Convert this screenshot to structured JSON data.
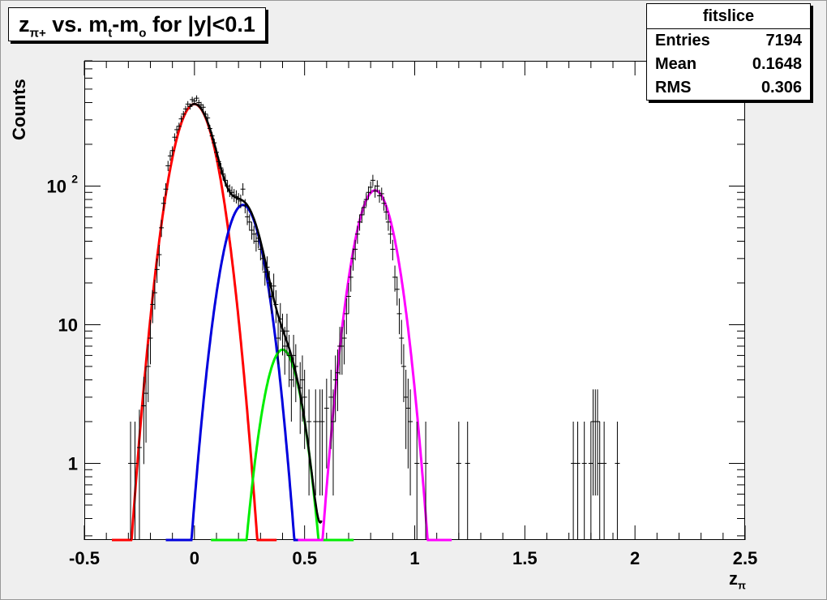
{
  "title": {
    "main": "z",
    "sub": "π+",
    "text1": " vs. m",
    "sub_t": "t",
    "text2": "-m",
    "sub_o": "o",
    "text3": " for |y|<0.1"
  },
  "stats": {
    "name": "fitslice",
    "rows": [
      {
        "label": "Entries",
        "value": "7194"
      },
      {
        "label": "Mean",
        "value": "0.1648"
      },
      {
        "label": "RMS",
        "value": "0.306"
      }
    ]
  },
  "colors": {
    "red": "#ff0000",
    "blue": "#0000dd",
    "green": "#00ee00",
    "magenta": "#ff00ff",
    "total": "#000000",
    "points": "#000000"
  },
  "chart_data": {
    "type": "scatter",
    "title": "zπ+ vs. mt-mo for |y|<0.1",
    "xlabel": "zπ",
    "ylabel": "Counts",
    "xlim": [
      -0.5,
      2.5
    ],
    "ylim": [
      0.28,
      800
    ],
    "yscale": "log",
    "grid": false,
    "x_ticks": [
      "-0.5",
      "0",
      "0.5",
      "1",
      "1.5",
      "2",
      "2.5"
    ],
    "y_tick_labels": [
      {
        "value": 1,
        "label": "1"
      },
      {
        "value": 10,
        "label": "10"
      },
      {
        "value": 100,
        "label": "10",
        "exp": "2"
      }
    ],
    "fit_components": [
      {
        "color": "red",
        "amplitude": 390,
        "mean": 0.0,
        "sigma": 0.075
      },
      {
        "color": "blue",
        "amplitude": 73,
        "mean": 0.22,
        "sigma": 0.07
      },
      {
        "color": "green",
        "amplitude": 6.6,
        "mean": 0.4,
        "sigma": 0.065
      },
      {
        "color": "magenta",
        "amplitude": 93,
        "mean": 0.82,
        "sigma": 0.07
      }
    ],
    "points": [
      {
        "x": -0.29,
        "y": 1
      },
      {
        "x": -0.27,
        "y": 1
      },
      {
        "x": -0.25,
        "y": 1.3
      },
      {
        "x": -0.23,
        "y": 2.6
      },
      {
        "x": -0.22,
        "y": 3.2
      },
      {
        "x": -0.21,
        "y": 5
      },
      {
        "x": -0.2,
        "y": 8
      },
      {
        "x": -0.19,
        "y": 14
      },
      {
        "x": -0.18,
        "y": 17
      },
      {
        "x": -0.17,
        "y": 25
      },
      {
        "x": -0.16,
        "y": 32
      },
      {
        "x": -0.15,
        "y": 50
      },
      {
        "x": -0.14,
        "y": 75
      },
      {
        "x": -0.13,
        "y": 95
      },
      {
        "x": -0.12,
        "y": 140
      },
      {
        "x": -0.11,
        "y": 165
      },
      {
        "x": -0.1,
        "y": 180
      },
      {
        "x": -0.09,
        "y": 225
      },
      {
        "x": -0.08,
        "y": 255
      },
      {
        "x": -0.07,
        "y": 270
      },
      {
        "x": -0.06,
        "y": 305
      },
      {
        "x": -0.05,
        "y": 330
      },
      {
        "x": -0.04,
        "y": 360
      },
      {
        "x": -0.03,
        "y": 390
      },
      {
        "x": -0.02,
        "y": 375
      },
      {
        "x": -0.01,
        "y": 420
      },
      {
        "x": 0.0,
        "y": 410
      },
      {
        "x": 0.01,
        "y": 430
      },
      {
        "x": 0.02,
        "y": 400
      },
      {
        "x": 0.03,
        "y": 385
      },
      {
        "x": 0.04,
        "y": 370
      },
      {
        "x": 0.05,
        "y": 330
      },
      {
        "x": 0.06,
        "y": 310
      },
      {
        "x": 0.07,
        "y": 260
      },
      {
        "x": 0.08,
        "y": 230
      },
      {
        "x": 0.09,
        "y": 205
      },
      {
        "x": 0.1,
        "y": 175
      },
      {
        "x": 0.11,
        "y": 150
      },
      {
        "x": 0.12,
        "y": 135
      },
      {
        "x": 0.13,
        "y": 122
      },
      {
        "x": 0.14,
        "y": 110
      },
      {
        "x": 0.15,
        "y": 100
      },
      {
        "x": 0.16,
        "y": 93
      },
      {
        "x": 0.17,
        "y": 90
      },
      {
        "x": 0.18,
        "y": 86
      },
      {
        "x": 0.19,
        "y": 84
      },
      {
        "x": 0.2,
        "y": 80
      },
      {
        "x": 0.21,
        "y": 78
      },
      {
        "x": 0.22,
        "y": 95
      },
      {
        "x": 0.23,
        "y": 72
      },
      {
        "x": 0.24,
        "y": 60
      },
      {
        "x": 0.25,
        "y": 55
      },
      {
        "x": 0.26,
        "y": 48
      },
      {
        "x": 0.27,
        "y": 45
      },
      {
        "x": 0.28,
        "y": 40
      },
      {
        "x": 0.29,
        "y": 42
      },
      {
        "x": 0.3,
        "y": 35
      },
      {
        "x": 0.31,
        "y": 30
      },
      {
        "x": 0.32,
        "y": 24
      },
      {
        "x": 0.33,
        "y": 26
      },
      {
        "x": 0.34,
        "y": 20
      },
      {
        "x": 0.35,
        "y": 16
      },
      {
        "x": 0.36,
        "y": 19
      },
      {
        "x": 0.37,
        "y": 14
      },
      {
        "x": 0.38,
        "y": 8
      },
      {
        "x": 0.39,
        "y": 11
      },
      {
        "x": 0.4,
        "y": 9
      },
      {
        "x": 0.41,
        "y": 7
      },
      {
        "x": 0.42,
        "y": 9
      },
      {
        "x": 0.43,
        "y": 6
      },
      {
        "x": 0.44,
        "y": 4
      },
      {
        "x": 0.45,
        "y": 6
      },
      {
        "x": 0.46,
        "y": 5
      },
      {
        "x": 0.48,
        "y": 3.5
      },
      {
        "x": 0.49,
        "y": 4
      },
      {
        "x": 0.5,
        "y": 3
      },
      {
        "x": 0.52,
        "y": 2
      },
      {
        "x": 0.55,
        "y": 2
      },
      {
        "x": 0.57,
        "y": 2
      },
      {
        "x": 0.58,
        "y": 2
      },
      {
        "x": 0.6,
        "y": 2.5
      },
      {
        "x": 0.62,
        "y": 3
      },
      {
        "x": 0.63,
        "y": 2
      },
      {
        "x": 0.64,
        "y": 4
      },
      {
        "x": 0.65,
        "y": 4.5
      },
      {
        "x": 0.66,
        "y": 7
      },
      {
        "x": 0.67,
        "y": 7
      },
      {
        "x": 0.68,
        "y": 8
      },
      {
        "x": 0.69,
        "y": 12
      },
      {
        "x": 0.7,
        "y": 16
      },
      {
        "x": 0.71,
        "y": 22
      },
      {
        "x": 0.72,
        "y": 30
      },
      {
        "x": 0.73,
        "y": 35
      },
      {
        "x": 0.74,
        "y": 45
      },
      {
        "x": 0.75,
        "y": 55
      },
      {
        "x": 0.76,
        "y": 62
      },
      {
        "x": 0.77,
        "y": 70
      },
      {
        "x": 0.78,
        "y": 80
      },
      {
        "x": 0.79,
        "y": 90
      },
      {
        "x": 0.8,
        "y": 98
      },
      {
        "x": 0.81,
        "y": 110
      },
      {
        "x": 0.82,
        "y": 92
      },
      {
        "x": 0.83,
        "y": 100
      },
      {
        "x": 0.84,
        "y": 85
      },
      {
        "x": 0.85,
        "y": 88
      },
      {
        "x": 0.86,
        "y": 75
      },
      {
        "x": 0.87,
        "y": 65
      },
      {
        "x": 0.88,
        "y": 55
      },
      {
        "x": 0.89,
        "y": 45
      },
      {
        "x": 0.9,
        "y": 35
      },
      {
        "x": 0.91,
        "y": 22
      },
      {
        "x": 0.92,
        "y": 18
      },
      {
        "x": 0.93,
        "y": 12
      },
      {
        "x": 0.94,
        "y": 8
      },
      {
        "x": 0.95,
        "y": 5
      },
      {
        "x": 0.96,
        "y": 3
      },
      {
        "x": 0.97,
        "y": 2.5
      },
      {
        "x": 0.98,
        "y": 2
      },
      {
        "x": 1.01,
        "y": 1
      },
      {
        "x": 1.05,
        "y": 1
      },
      {
        "x": 1.2,
        "y": 1
      },
      {
        "x": 1.24,
        "y": 1
      },
      {
        "x": 1.72,
        "y": 1
      },
      {
        "x": 1.74,
        "y": 1
      },
      {
        "x": 1.77,
        "y": 1
      },
      {
        "x": 1.8,
        "y": 1
      },
      {
        "x": 1.81,
        "y": 2
      },
      {
        "x": 1.82,
        "y": 2
      },
      {
        "x": 1.83,
        "y": 2
      },
      {
        "x": 1.84,
        "y": 1
      },
      {
        "x": 1.86,
        "y": 1
      },
      {
        "x": 1.92,
        "y": 1
      }
    ]
  }
}
